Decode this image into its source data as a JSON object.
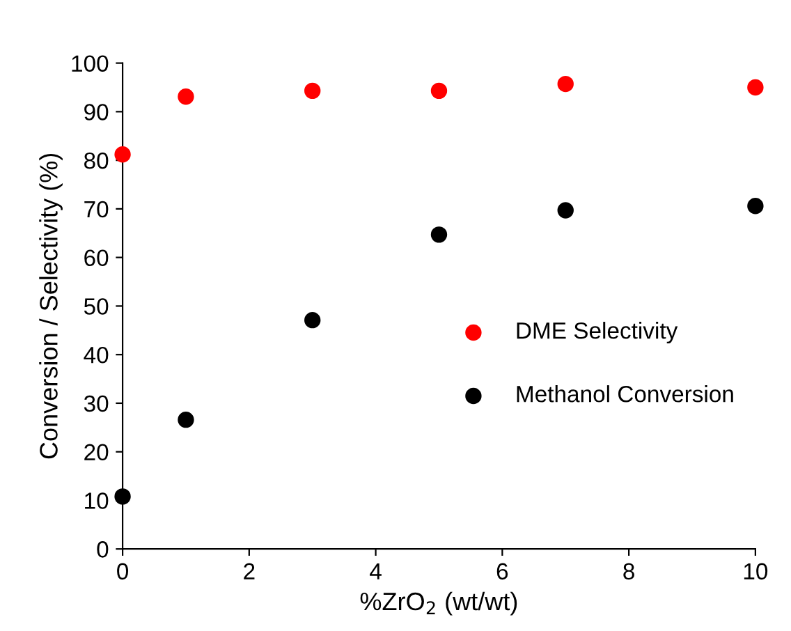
{
  "chart_data": {
    "type": "scatter",
    "xlabel": "%ZrO$_{2}$ (wt/wt)",
    "ylabel": "Conversion / Selectivity (%)",
    "x": [
      0,
      1,
      3,
      5,
      7,
      10
    ],
    "series": [
      {
        "name": "DME Selectivity",
        "color": "#ff0000",
        "values": [
          81.2,
          93.1,
          94.3,
          94.3,
          95.7,
          95.0
        ]
      },
      {
        "name": "Methanol Conversion",
        "color": "#000000",
        "values": [
          10.8,
          26.6,
          47.1,
          64.7,
          69.7,
          70.6
        ]
      }
    ],
    "xlim": [
      0,
      10
    ],
    "xticks": [
      0,
      2,
      4,
      6,
      8,
      10
    ],
    "ylim": [
      0,
      100
    ],
    "yticks": [
      0,
      10,
      20,
      30,
      40,
      50,
      60,
      70,
      80,
      90,
      100
    ],
    "grid": false,
    "legend": "right",
    "marker": "circle"
  }
}
